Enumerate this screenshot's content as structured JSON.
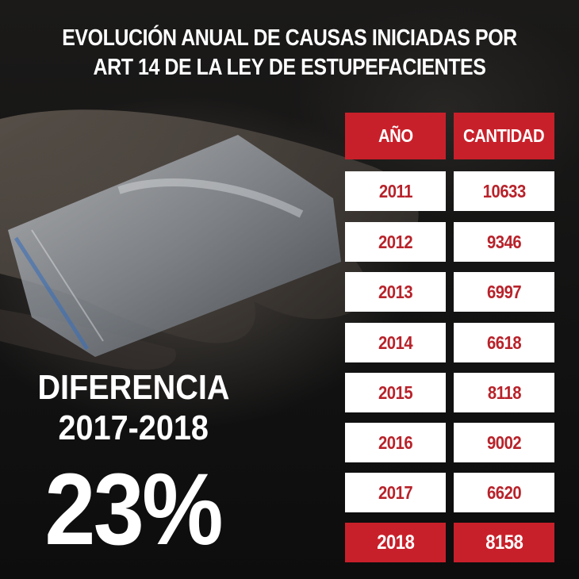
{
  "chart_data": {
    "type": "table",
    "title_lines": [
      "EVOLUCIÓN ANUAL DE CAUSAS INICIADAS POR",
      "ART 14 DE LA LEY DE ESTUPEFACIENTES"
    ],
    "columns": [
      "AÑO",
      "CANTIDAD"
    ],
    "rows": [
      {
        "year": "2011",
        "value": "10633"
      },
      {
        "year": "2012",
        "value": "9346"
      },
      {
        "year": "2013",
        "value": "6997"
      },
      {
        "year": "2014",
        "value": "6618"
      },
      {
        "year": "2015",
        "value": "8118"
      },
      {
        "year": "2016",
        "value": "9002"
      },
      {
        "year": "2017",
        "value": "6620"
      },
      {
        "year": "2018",
        "value": "8158"
      }
    ],
    "highlighted_row": "2018",
    "colors": {
      "header": "#c8202a",
      "cell_text": "#b8222a",
      "highlight": "#c8202a"
    }
  },
  "callout": {
    "line1": "DIFERENCIA",
    "line2": "2017-2018",
    "value": "23%"
  }
}
